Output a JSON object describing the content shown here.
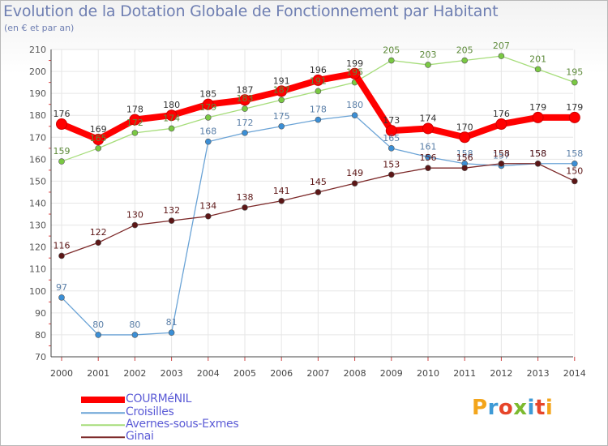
{
  "title": "Evolution de la Dotation Globale de Fonctionnement par Habitant",
  "subtitle": "(en € et par an)",
  "logo": {
    "text": "Proxiti",
    "letters": [
      "P",
      "r",
      "o",
      "x",
      "i",
      "t",
      "i"
    ],
    "colors": [
      "#f3a51b",
      "#3e9ad6",
      "#e6452a",
      "#7cba2f",
      "#3e9ad6",
      "#e6452a",
      "#f3a51b"
    ]
  },
  "chart_data": {
    "type": "line",
    "title": "Evolution de la Dotation Globale de Fonctionnement par Habitant",
    "subtitle": "(en € et par an)",
    "x": [
      "2000",
      "2001",
      "2002",
      "2003",
      "2004",
      "2005",
      "2006",
      "2007",
      "2008",
      "2009",
      "2010",
      "2011",
      "2012",
      "2013",
      "2014"
    ],
    "ylim": [
      70,
      210
    ],
    "yticks": [
      70,
      80,
      90,
      100,
      110,
      120,
      130,
      140,
      150,
      160,
      170,
      180,
      190,
      200,
      210
    ],
    "grid": true,
    "legend_position": "bottom-left",
    "series": [
      {
        "name": "COURMéNIL",
        "color": "#ff0000",
        "marker_color": "#ff0000",
        "label_color": "#333333",
        "width": 8,
        "emphasized": true,
        "values": [
          176,
          169,
          178,
          180,
          185,
          187,
          191,
          196,
          199,
          173,
          174,
          170,
          176,
          179,
          179
        ]
      },
      {
        "name": "Croisilles",
        "color": "#6aa3d6",
        "marker_color": "#3b8fd6",
        "label_color": "#5a7fa8",
        "width": 1.3,
        "values": [
          97,
          80,
          80,
          81,
          168,
          172,
          175,
          178,
          180,
          165,
          161,
          158,
          157,
          158,
          158
        ]
      },
      {
        "name": "Avernes-sous-Exmes",
        "color": "#a6dd7a",
        "marker_color": "#7ac943",
        "label_color": "#5d8a3a",
        "width": 1.3,
        "values": [
          159,
          165,
          172,
          174,
          179,
          183,
          187,
          191,
          195,
          205,
          203,
          205,
          207,
          201,
          195
        ]
      },
      {
        "name": "Ginai",
        "color": "#7d2a2a",
        "marker_color": "#5c1616",
        "label_color": "#5c1616",
        "width": 1.3,
        "values": [
          116,
          122,
          130,
          132,
          134,
          138,
          141,
          145,
          149,
          153,
          156,
          156,
          158,
          158,
          150
        ]
      }
    ],
    "draw_order": [
      1,
      2,
      3,
      0
    ],
    "label_order": [
      1,
      2,
      3,
      0
    ]
  }
}
